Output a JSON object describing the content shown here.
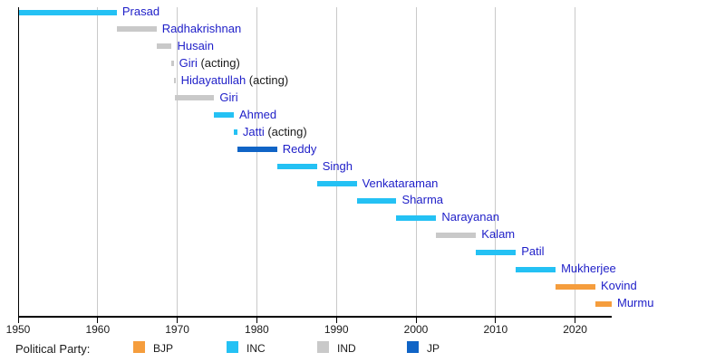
{
  "chart_data": {
    "type": "bar",
    "variant": "horizontal-timeline-gantt",
    "title": "",
    "subtitle": "",
    "x_axis": {
      "ticks": [
        1950,
        1960,
        1970,
        1980,
        1990,
        2000,
        2010,
        2020
      ],
      "range": [
        1950,
        2024.6
      ],
      "gridlines": true
    },
    "bars": [
      {
        "name": "Prasad",
        "suffix": "",
        "party": "INC",
        "start": 1950.1,
        "end": 1962.4
      },
      {
        "name": "Radhakrishnan",
        "suffix": "",
        "party": "IND",
        "start": 1962.4,
        "end": 1967.4
      },
      {
        "name": "Husain",
        "suffix": "",
        "party": "IND",
        "start": 1967.4,
        "end": 1969.3
      },
      {
        "name": "Giri",
        "suffix": "(acting)",
        "party": "IND",
        "start": 1969.3,
        "end": 1969.55
      },
      {
        "name": "Hidayatullah",
        "suffix": "(acting)",
        "party": "IND",
        "start": 1969.55,
        "end": 1969.65
      },
      {
        "name": "Giri",
        "suffix": "",
        "party": "IND",
        "start": 1969.65,
        "end": 1974.65
      },
      {
        "name": "Ahmed",
        "suffix": "",
        "party": "INC",
        "start": 1974.65,
        "end": 1977.1
      },
      {
        "name": "Jatti",
        "suffix": "(acting)",
        "party": "INC",
        "start": 1977.1,
        "end": 1977.55
      },
      {
        "name": "Reddy",
        "suffix": "",
        "party": "JP",
        "start": 1977.55,
        "end": 1982.55
      },
      {
        "name": "Singh",
        "suffix": "",
        "party": "INC",
        "start": 1982.55,
        "end": 1987.55
      },
      {
        "name": "Venkataraman",
        "suffix": "",
        "party": "INC",
        "start": 1987.55,
        "end": 1992.55
      },
      {
        "name": "Sharma",
        "suffix": "",
        "party": "INC",
        "start": 1992.55,
        "end": 1997.55
      },
      {
        "name": "Narayanan",
        "suffix": "",
        "party": "INC",
        "start": 1997.55,
        "end": 2002.55
      },
      {
        "name": "Kalam",
        "suffix": "",
        "party": "IND",
        "start": 2002.55,
        "end": 2007.55
      },
      {
        "name": "Patil",
        "suffix": "",
        "party": "INC",
        "start": 2007.55,
        "end": 2012.55
      },
      {
        "name": "Mukherjee",
        "suffix": "",
        "party": "INC",
        "start": 2012.55,
        "end": 2017.55
      },
      {
        "name": "Kovind",
        "suffix": "",
        "party": "BJP",
        "start": 2017.55,
        "end": 2022.55
      },
      {
        "name": "Murmu",
        "suffix": "",
        "party": "BJP",
        "start": 2022.55,
        "end": 2024.6
      }
    ],
    "party_colors": {
      "BJP": "#F59D3D",
      "INC": "#24C1F4",
      "IND": "#C9C9C9",
      "JP": "#1064C6"
    },
    "legend": {
      "title": "Political Party:",
      "position": "bottom",
      "entries": [
        {
          "label": "BJP",
          "party": "BJP"
        },
        {
          "label": "INC",
          "party": "INC"
        },
        {
          "label": "IND",
          "party": "IND"
        },
        {
          "label": "JP",
          "party": "JP"
        }
      ]
    }
  },
  "colors": {
    "name_link_text": "#1E1EC8",
    "acting_text": "#1A1A1A",
    "axis": "#000000",
    "gridline": "#C9C9C9",
    "background": "#FFFFFF"
  }
}
